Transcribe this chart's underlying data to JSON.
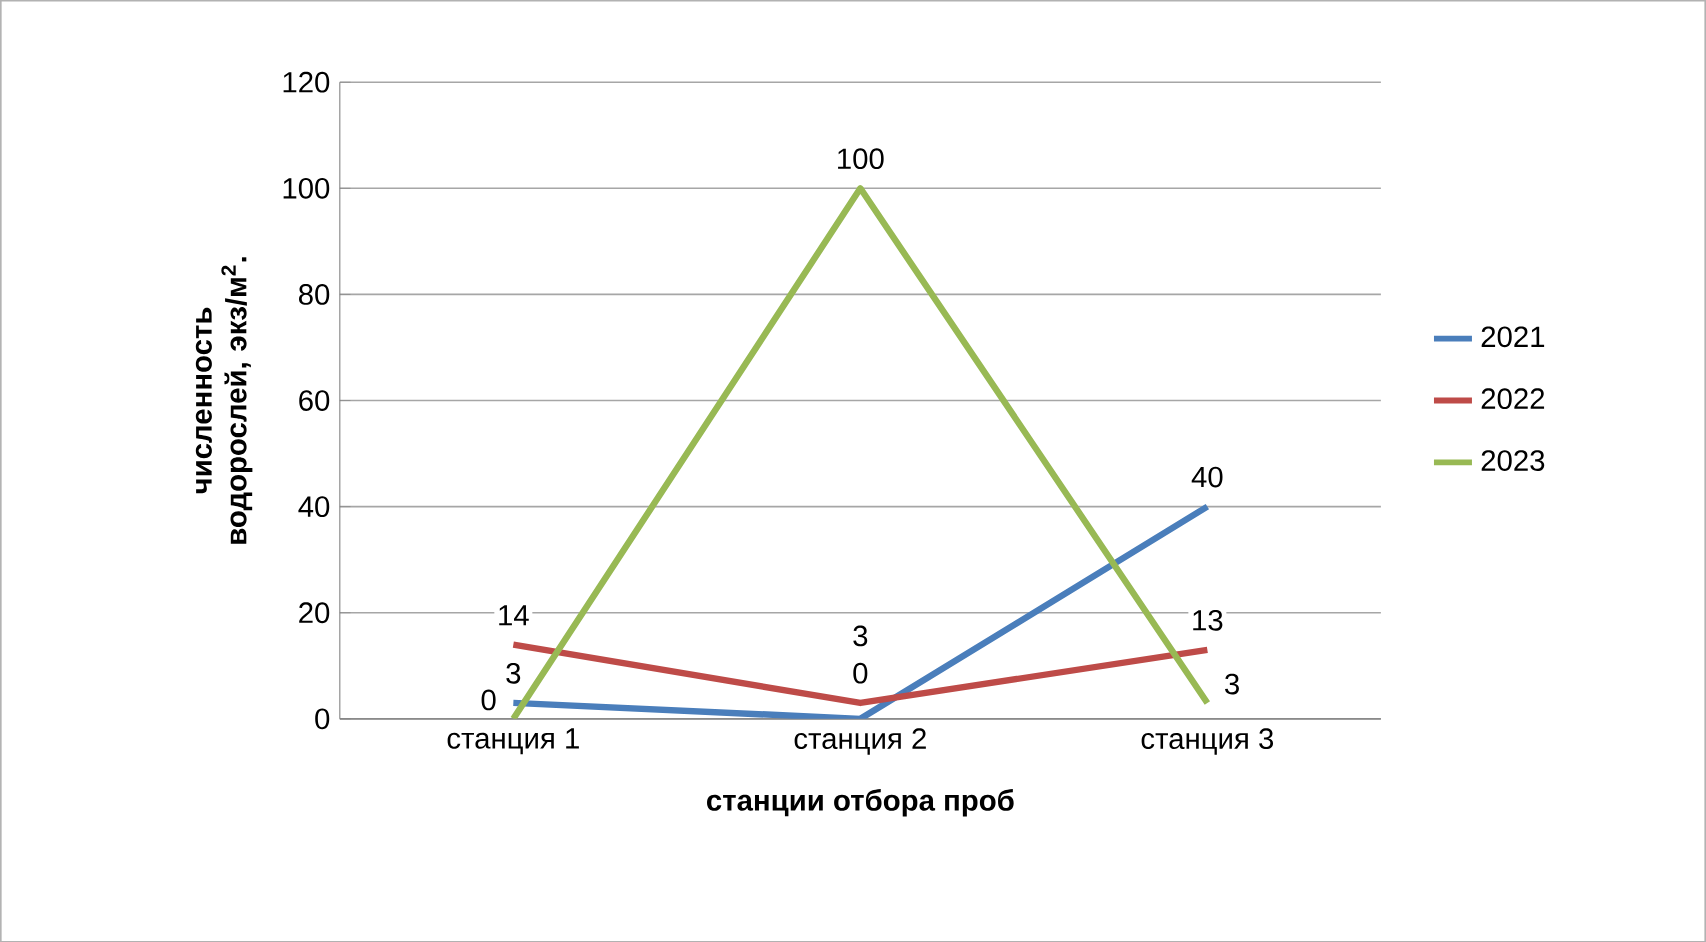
{
  "chart_data": {
    "type": "line",
    "xlabel": "станции отбора проб",
    "ylabel": "численность водорослей, экз/м$^{2}$.",
    "categories": [
      "станция 1",
      "станция 2",
      "станция 3"
    ],
    "series": [
      {
        "name": "2021",
        "color": "#4a7ebb",
        "values": [
          3,
          0,
          40
        ]
      },
      {
        "name": "2022",
        "color": "#be4b48",
        "values": [
          14,
          3,
          13
        ]
      },
      {
        "name": "2023",
        "color": "#98b954",
        "values": [
          0,
          100,
          3
        ]
      }
    ],
    "ylim": [
      0,
      120
    ],
    "yticks": [
      0,
      20,
      40,
      60,
      80,
      100,
      120
    ],
    "grid": "y",
    "legend": "right",
    "data_labels": true
  }
}
